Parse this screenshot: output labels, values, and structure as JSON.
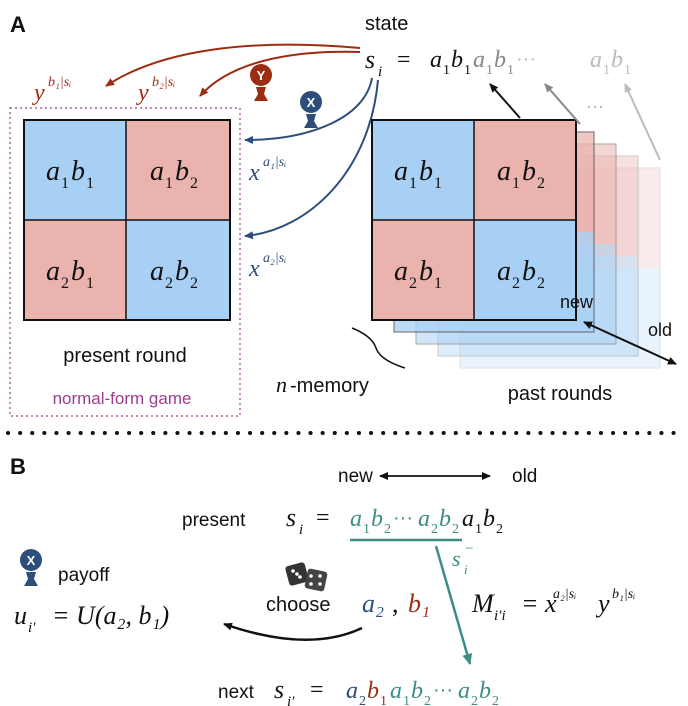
{
  "panel_a": {
    "label": "A",
    "state_label": "state",
    "state_lhs": "s",
    "state_lhs_sub": "i",
    "state_eq": "=",
    "y_strategy_1": "y",
    "y_strategy_1_sup": "b₁|sᵢ",
    "y_strategy_2": "y",
    "y_strategy_2_sup": "b₂|sᵢ",
    "x_strategy_1": "x",
    "x_strategy_1_sup": "a₁|sᵢ",
    "x_strategy_2": "x",
    "x_strategy_2_sup": "a₂|sᵢ",
    "player_y": "Y",
    "player_x": "X",
    "present_round_label": "present round",
    "normal_form_label": "normal-form game",
    "memory_n": "n",
    "memory_label": "-memory",
    "past_rounds_label": "past rounds",
    "new_label": "new",
    "old_label": "old",
    "ellipsis": "···",
    "cells": [
      {
        "a": "a",
        "a_sub": "1",
        "b": "b",
        "b_sub": "1"
      },
      {
        "a": "a",
        "a_sub": "1",
        "b": "b",
        "b_sub": "2"
      },
      {
        "a": "a",
        "a_sub": "2",
        "b": "b",
        "b_sub": "1"
      },
      {
        "a": "a",
        "a_sub": "2",
        "b": "b",
        "b_sub": "2"
      }
    ]
  },
  "panel_b": {
    "label": "B",
    "new_label": "new",
    "old_label": "old",
    "present_label": "present",
    "present_s": "s",
    "present_s_sub": "i",
    "s_minus": "s",
    "s_minus_sub": "i",
    "s_minus_sup": "−",
    "player_x": "X",
    "payoff_label": "payoff",
    "payoff_u": "u",
    "payoff_u_sub": "i′",
    "payoff_rhs": "= U(a₂, b₁)",
    "choose_label": "choose",
    "choose_a": "a₂",
    "choose_comma": ",",
    "choose_b": "b₁",
    "transition_m": "M",
    "transition_m_sub": "i′i",
    "transition_rhs_x": "= x",
    "transition_rhs_x_sup": "a₂|sᵢ",
    "transition_rhs_y": "y",
    "transition_rhs_y_sup": "b₁|sᵢ",
    "next_label": "next",
    "next_s": "s",
    "next_s_sub": "i′",
    "eq": "="
  },
  "colors": {
    "blue_cell": "#a8d0f5",
    "red_cell": "#eab3ae",
    "y_red": "#9c2c12",
    "x_blue": "#2d4e7a",
    "teal": "#3f8c87",
    "magenta": "#9b3e8f"
  }
}
